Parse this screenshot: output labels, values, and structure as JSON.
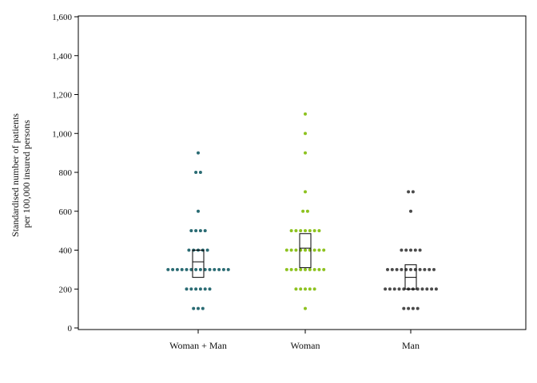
{
  "chart_data": {
    "type": "scatter",
    "subtype": "dot-strip-with-box",
    "ylabel_lines": [
      "Standardised number of patients",
      "per 100,000 insured persons"
    ],
    "ylim": [
      0,
      1600
    ],
    "yticks": [
      0,
      200,
      400,
      600,
      800,
      1000,
      1200,
      1400,
      1600
    ],
    "ytick_labels": [
      "0",
      "200",
      "400",
      "600",
      "800",
      "1,000",
      "1,200",
      "1,400",
      "1,600"
    ],
    "categories": [
      "Woman + Man",
      "Woman",
      "Man"
    ],
    "grid": false,
    "series": [
      {
        "color": "#2a6b73",
        "points": [
          {
            "y": 900,
            "n": 1
          },
          {
            "y": 800,
            "n": 2
          },
          {
            "y": 600,
            "n": 1
          },
          {
            "y": 500,
            "n": 4
          },
          {
            "y": 400,
            "n": 5
          },
          {
            "y": 300,
            "n": 14
          },
          {
            "y": 200,
            "n": 6
          },
          {
            "y": 100,
            "n": 3
          }
        ],
        "box": {
          "q1": 260,
          "median": 340,
          "q3": 400
        }
      },
      {
        "color": "#8dc21f",
        "points": [
          {
            "y": 1100,
            "n": 1
          },
          {
            "y": 1000,
            "n": 1
          },
          {
            "y": 900,
            "n": 1
          },
          {
            "y": 700,
            "n": 1
          },
          {
            "y": 600,
            "n": 2
          },
          {
            "y": 500,
            "n": 7
          },
          {
            "y": 400,
            "n": 9
          },
          {
            "y": 300,
            "n": 9
          },
          {
            "y": 200,
            "n": 5
          },
          {
            "y": 100,
            "n": 1
          }
        ],
        "box": {
          "q1": 310,
          "median": 410,
          "q3": 485
        }
      },
      {
        "color": "#4a4a4a",
        "points": [
          {
            "y": 700,
            "n": 2
          },
          {
            "y": 600,
            "n": 1
          },
          {
            "y": 400,
            "n": 5
          },
          {
            "y": 300,
            "n": 11
          },
          {
            "y": 200,
            "n": 12
          },
          {
            "y": 100,
            "n": 4
          }
        ],
        "box": {
          "q1": 200,
          "median": 260,
          "q3": 325
        }
      }
    ]
  }
}
